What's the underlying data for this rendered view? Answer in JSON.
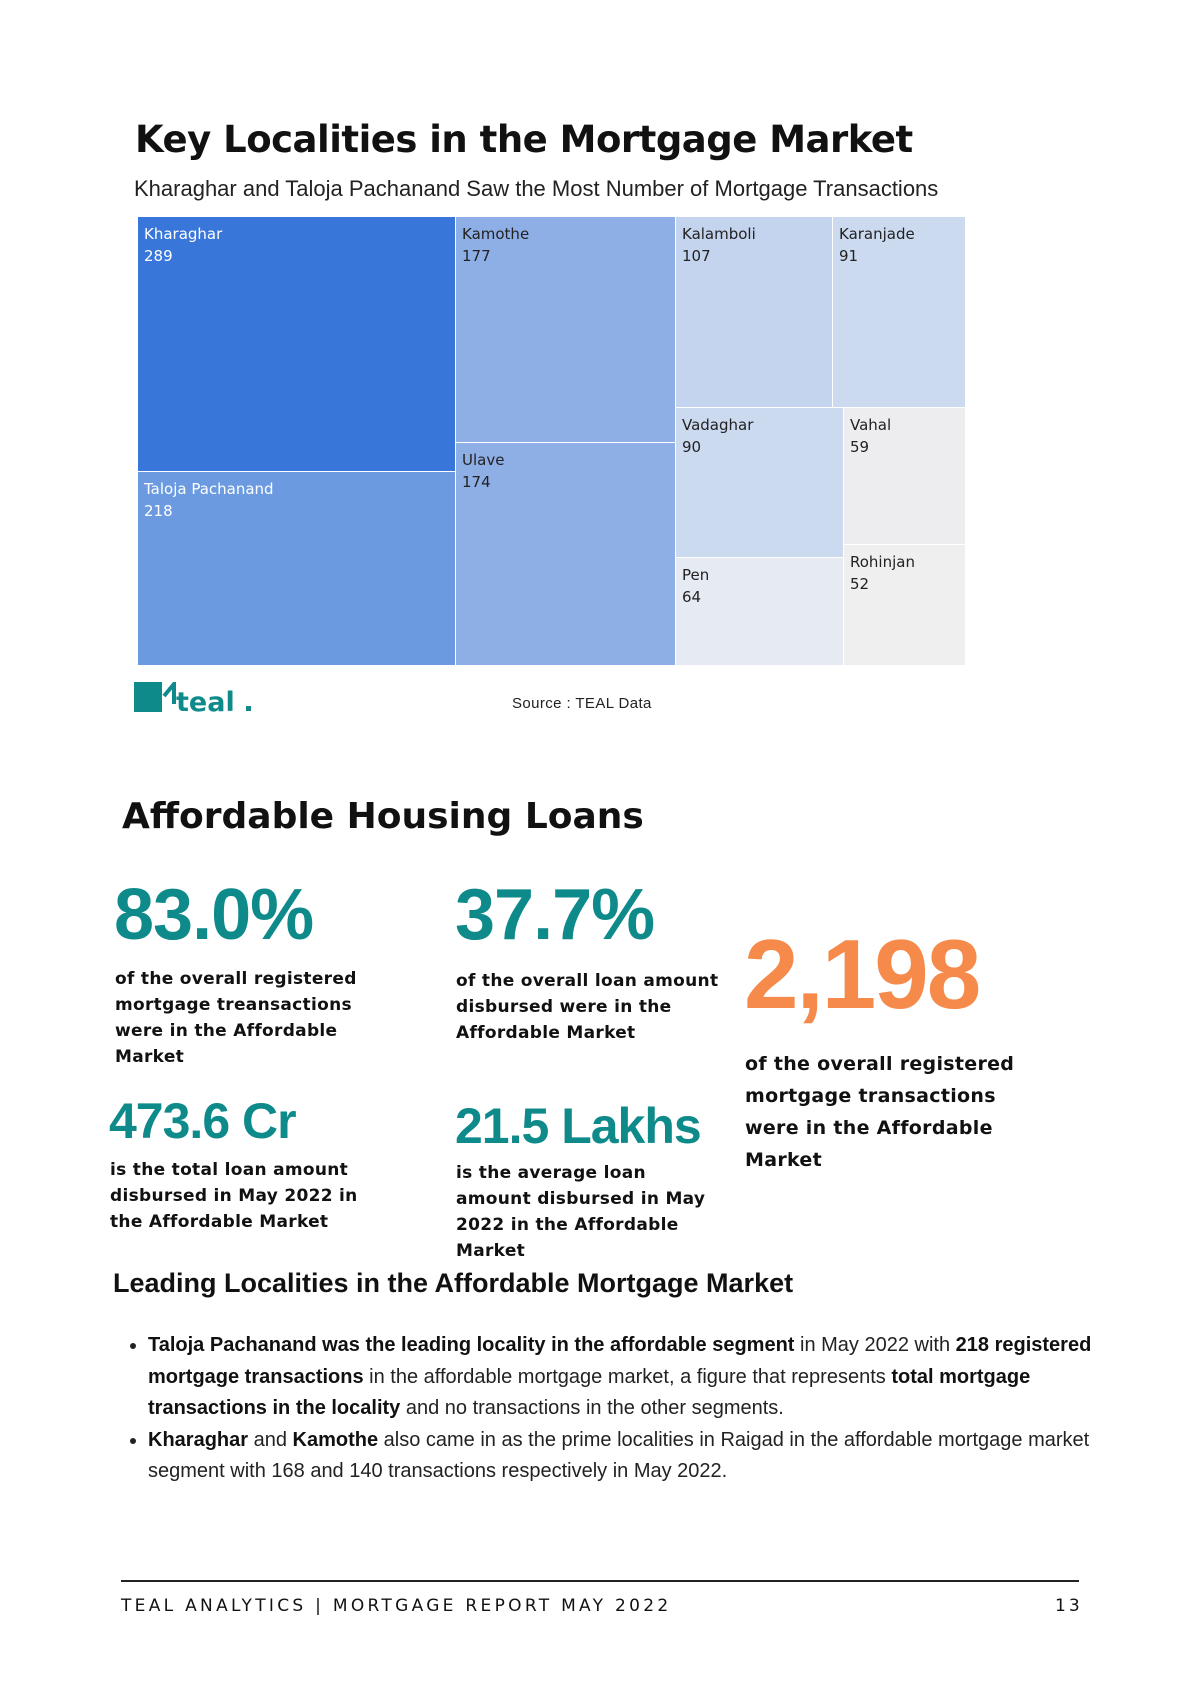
{
  "section1": {
    "title": "Key Localities in the Mortgage Market",
    "subtitle": "Kharaghar and Taloja Pachanand Saw the Most Number of Mortgage Transactions",
    "source": "Source : TEAL Data",
    "logo_text": "teal"
  },
  "chart_data": {
    "type": "treemap",
    "categories": [
      "Kharaghar",
      "Taloja Pachanand",
      "Kamothe",
      "Ulave",
      "Kalamboli",
      "Karanjade",
      "Vadaghar",
      "Vahal",
      "Pen",
      "Rohinjan"
    ],
    "values": [
      289,
      218,
      177,
      174,
      107,
      91,
      90,
      59,
      64,
      52
    ],
    "tiles": [
      {
        "label": "Kharaghar",
        "value": "289",
        "color": "#3876d9",
        "text_color": "#ffffff"
      },
      {
        "label": "Taloja Pachanand",
        "value": "218",
        "color": "#6b9ae0",
        "text_color": "#ffffff"
      },
      {
        "label": "Kamothe",
        "value": "177",
        "color": "#8eaee6",
        "text_color": "#222222"
      },
      {
        "label": "Ulave",
        "value": "174",
        "color": "#8eaee6",
        "text_color": "#222222"
      },
      {
        "label": "Kalamboli",
        "value": "107",
        "color": "#c4d4ee",
        "text_color": "#222222"
      },
      {
        "label": "Karanjade",
        "value": "91",
        "color": "#ccdaf0",
        "text_color": "#222222"
      },
      {
        "label": "Vadaghar",
        "value": "90",
        "color": "#ccdaf0",
        "text_color": "#222222"
      },
      {
        "label": "Vahal",
        "value": "59",
        "color": "#ededf0",
        "text_color": "#222222"
      },
      {
        "label": "Pen",
        "value": "64",
        "color": "#e6eaf3",
        "text_color": "#222222"
      },
      {
        "label": "Rohinjan",
        "value": "52",
        "color": "#efefef",
        "text_color": "#222222"
      }
    ]
  },
  "section2": {
    "title": "Affordable Housing Loans",
    "stats": [
      {
        "value": "83.0%",
        "desc": "of the overall registered mortgage treansactions were in the Affordable Market"
      },
      {
        "value": "37.7%",
        "desc": "of the overall loan amount disbursed were in the Affordable Market"
      },
      {
        "value": "2,198",
        "desc": "of the overall registered mortgage transactions were in the Affordable Market"
      },
      {
        "value": "473.6 Cr",
        "desc": "is the total loan amount disbursed in May 2022 in the Affordable Market"
      },
      {
        "value": "21.5 Lakhs",
        "desc": "is the average loan amount disbursed in May 2022 in the Affordable Market"
      }
    ],
    "colors": {
      "teal": "#0f8a8a",
      "orange": "#f58a4a"
    }
  },
  "section3": {
    "title": "Leading Localities in the Affordable Mortgage Market",
    "bullets": [
      [
        {
          "b": true,
          "t": "Taloja Pachanand was the leading locality in the affordable segment"
        },
        {
          "b": false,
          "t": " in May 2022 with "
        },
        {
          "b": true,
          "t": "218 registered mortgage transactions"
        },
        {
          "b": false,
          "t": " in the affordable mortgage market, a figure that represents "
        },
        {
          "b": true,
          "t": "total mortgage transactions in the locality"
        },
        {
          "b": false,
          "t": " and no transactions in the other segments."
        }
      ],
      [
        {
          "b": true,
          "t": "Kharaghar"
        },
        {
          "b": false,
          "t": " and "
        },
        {
          "b": true,
          "t": "Kamothe"
        },
        {
          "b": false,
          "t": " also came in as the prime localities in Raigad in the affordable mortgage market segment  with 168 and 140 transactions respectively in May 2022."
        }
      ]
    ]
  },
  "footer": {
    "left": "TEAL ANALYTICS | MORTGAGE REPORT MAY 2022",
    "page": "13"
  }
}
